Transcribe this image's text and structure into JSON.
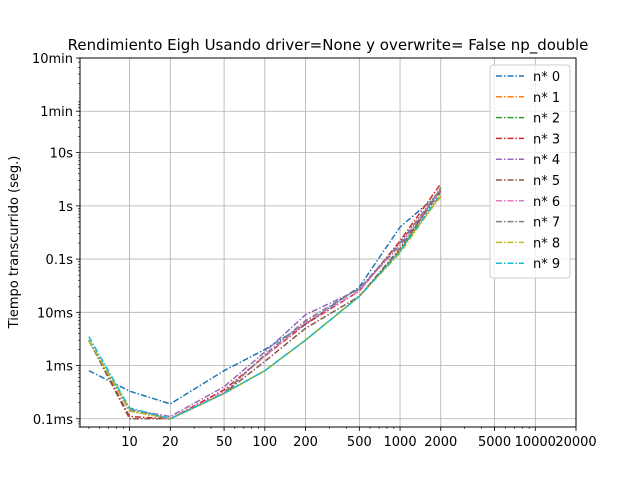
{
  "chart_data": {
    "type": "line",
    "title": "Rendimiento   Eigh Usando driver=None y overwrite= False np_double",
    "xlabel": "",
    "ylabel": "Tiempo transcurrido (seg.)",
    "xscale": "log",
    "yscale": "log",
    "xlim": [
      4.3,
      20000
    ],
    "ylim": [
      7e-05,
      600
    ],
    "grid": true,
    "legend_position": "top-right",
    "x_ticks": [
      {
        "value": 10,
        "label": "10"
      },
      {
        "value": 20,
        "label": "20"
      },
      {
        "value": 50,
        "label": "50"
      },
      {
        "value": 100,
        "label": "100"
      },
      {
        "value": 200,
        "label": "200"
      },
      {
        "value": 500,
        "label": "500"
      },
      {
        "value": 1000,
        "label": "1000"
      },
      {
        "value": 2000,
        "label": "2000"
      },
      {
        "value": 5000,
        "label": "5000"
      },
      {
        "value": 10000,
        "label": "10000"
      },
      {
        "value": 20000,
        "label": "20000"
      }
    ],
    "y_ticks": [
      {
        "value": 0.0001,
        "label": "0.1ms"
      },
      {
        "value": 0.001,
        "label": "1ms"
      },
      {
        "value": 0.01,
        "label": "10ms"
      },
      {
        "value": 0.1,
        "label": "0.1s"
      },
      {
        "value": 1,
        "label": "1s"
      },
      {
        "value": 10,
        "label": "10s"
      },
      {
        "value": 60,
        "label": "1min"
      },
      {
        "value": 600,
        "label": "10min"
      }
    ],
    "series": [
      {
        "name": "n* 0",
        "color": "#1f77b4",
        "x": [
          5,
          10,
          20,
          50,
          100,
          200,
          500,
          1000,
          2000
        ],
        "y": [
          0.0008,
          0.00033,
          0.00019,
          0.0008,
          0.002,
          0.006,
          0.03,
          0.4,
          1.8
        ]
      },
      {
        "name": "n* 1",
        "color": "#ff7f0e",
        "x": [
          5,
          10,
          20,
          50,
          100,
          200,
          500,
          1000,
          2000
        ],
        "y": [
          0.003,
          0.00015,
          0.0001,
          0.0003,
          0.0008,
          0.003,
          0.02,
          0.15,
          1.5
        ]
      },
      {
        "name": "n* 2",
        "color": "#2ca02c",
        "x": [
          5,
          10,
          20,
          50,
          100,
          200,
          500,
          1000,
          2000
        ],
        "y": [
          0.0029,
          0.00014,
          0.0001,
          0.0003,
          0.0008,
          0.003,
          0.02,
          0.14,
          2.2
        ]
      },
      {
        "name": "n* 3",
        "color": "#d62728",
        "x": [
          5,
          10,
          20,
          50,
          100,
          200,
          500,
          1000,
          2000
        ],
        "y": [
          0.003,
          0.00011,
          0.0001,
          0.00035,
          0.0015,
          0.006,
          0.025,
          0.22,
          2.6
        ]
      },
      {
        "name": "n* 4",
        "color": "#9467bd",
        "x": [
          5,
          10,
          20,
          50,
          100,
          200,
          500,
          1000,
          2000
        ],
        "y": [
          0.003,
          0.00015,
          0.00011,
          0.0004,
          0.0018,
          0.009,
          0.027,
          0.18,
          2.0
        ]
      },
      {
        "name": "n* 5",
        "color": "#8c564b",
        "x": [
          5,
          10,
          20,
          50,
          100,
          200,
          500,
          1000,
          2000
        ],
        "y": [
          0.003,
          0.0001,
          0.0001,
          0.0003,
          0.0012,
          0.005,
          0.02,
          0.16,
          1.9
        ]
      },
      {
        "name": "n* 6",
        "color": "#e377c2",
        "x": [
          5,
          10,
          20,
          50,
          100,
          200,
          500,
          1000,
          2000
        ],
        "y": [
          0.003,
          0.00014,
          0.0001,
          0.00032,
          0.0015,
          0.0065,
          0.025,
          0.2,
          2.0
        ]
      },
      {
        "name": "n* 7",
        "color": "#7f7f7f",
        "x": [
          5,
          10,
          20,
          50,
          100,
          200,
          500,
          1000,
          2000
        ],
        "y": [
          0.003,
          0.00015,
          0.0001,
          0.0003,
          0.0016,
          0.007,
          0.028,
          0.2,
          2.1
        ]
      },
      {
        "name": "n* 8",
        "color": "#bcbd22",
        "x": [
          5,
          10,
          20,
          50,
          100,
          200,
          500,
          1000,
          2000
        ],
        "y": [
          0.003,
          0.00014,
          0.0001,
          0.0003,
          0.0008,
          0.003,
          0.02,
          0.13,
          1.6
        ]
      },
      {
        "name": "n* 9",
        "color": "#17becf",
        "x": [
          5,
          10,
          20,
          50,
          100,
          200,
          500,
          1000,
          2000
        ],
        "y": [
          0.0035,
          0.00016,
          0.0001,
          0.0003,
          0.0008,
          0.003,
          0.02,
          0.14,
          1.7
        ]
      }
    ]
  }
}
